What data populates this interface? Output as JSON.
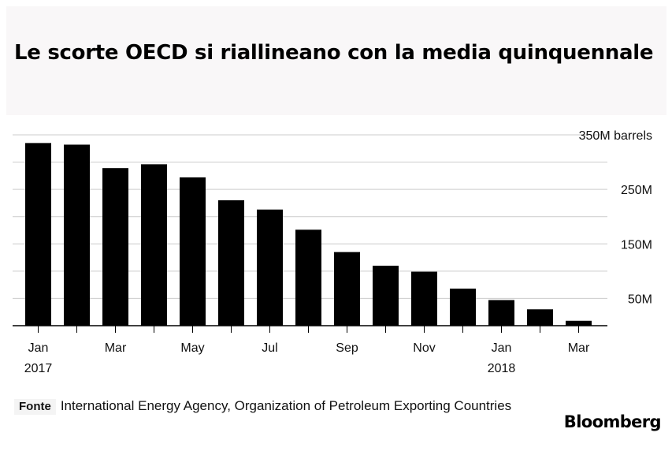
{
  "title": "Le scorte OECD si riallineano con la media quinquennale",
  "source_label": "Fonte",
  "source_text": "International Energy Agency, Organization of Petroleum Exporting Countries",
  "brand": "Bloomberg",
  "colors": {
    "bar": "#000000",
    "grid": "#cccccc",
    "title_band": "#f9f7f8",
    "text": "#111111"
  },
  "chart_data": {
    "type": "bar",
    "categories": [
      "Jan 2017",
      "Feb 2017",
      "Mar 2017",
      "Apr 2017",
      "May 2017",
      "Jun 2017",
      "Jul 2017",
      "Aug 2017",
      "Sep 2017",
      "Oct 2017",
      "Nov 2017",
      "Dec 2017",
      "Jan 2018",
      "Feb 2018",
      "Mar 2018"
    ],
    "values": [
      335,
      332,
      289,
      296,
      272,
      230,
      213,
      176,
      135,
      110,
      99,
      68,
      47,
      30,
      9
    ],
    "unit": "M barrels",
    "ylim": [
      0,
      350
    ],
    "yticks": [
      {
        "value": 350,
        "label": "350M barrels"
      },
      {
        "value": 250,
        "label": "250M"
      },
      {
        "value": 150,
        "label": "150M"
      },
      {
        "value": 50,
        "label": "50M"
      }
    ],
    "gridlines": [
      50,
      100,
      150,
      200,
      250,
      300,
      350
    ],
    "xticks": [
      {
        "index": 0,
        "line1": "Jan",
        "line2": "2017"
      },
      {
        "index": 2,
        "line1": "Mar",
        "line2": ""
      },
      {
        "index": 4,
        "line1": "May",
        "line2": ""
      },
      {
        "index": 6,
        "line1": "Jul",
        "line2": ""
      },
      {
        "index": 8,
        "line1": "Sep",
        "line2": ""
      },
      {
        "index": 10,
        "line1": "Nov",
        "line2": ""
      },
      {
        "index": 12,
        "line1": "Jan",
        "line2": "2018"
      },
      {
        "index": 14,
        "line1": "Mar",
        "line2": ""
      }
    ],
    "grid": true,
    "legend": "none",
    "ylabel_position": "right"
  }
}
